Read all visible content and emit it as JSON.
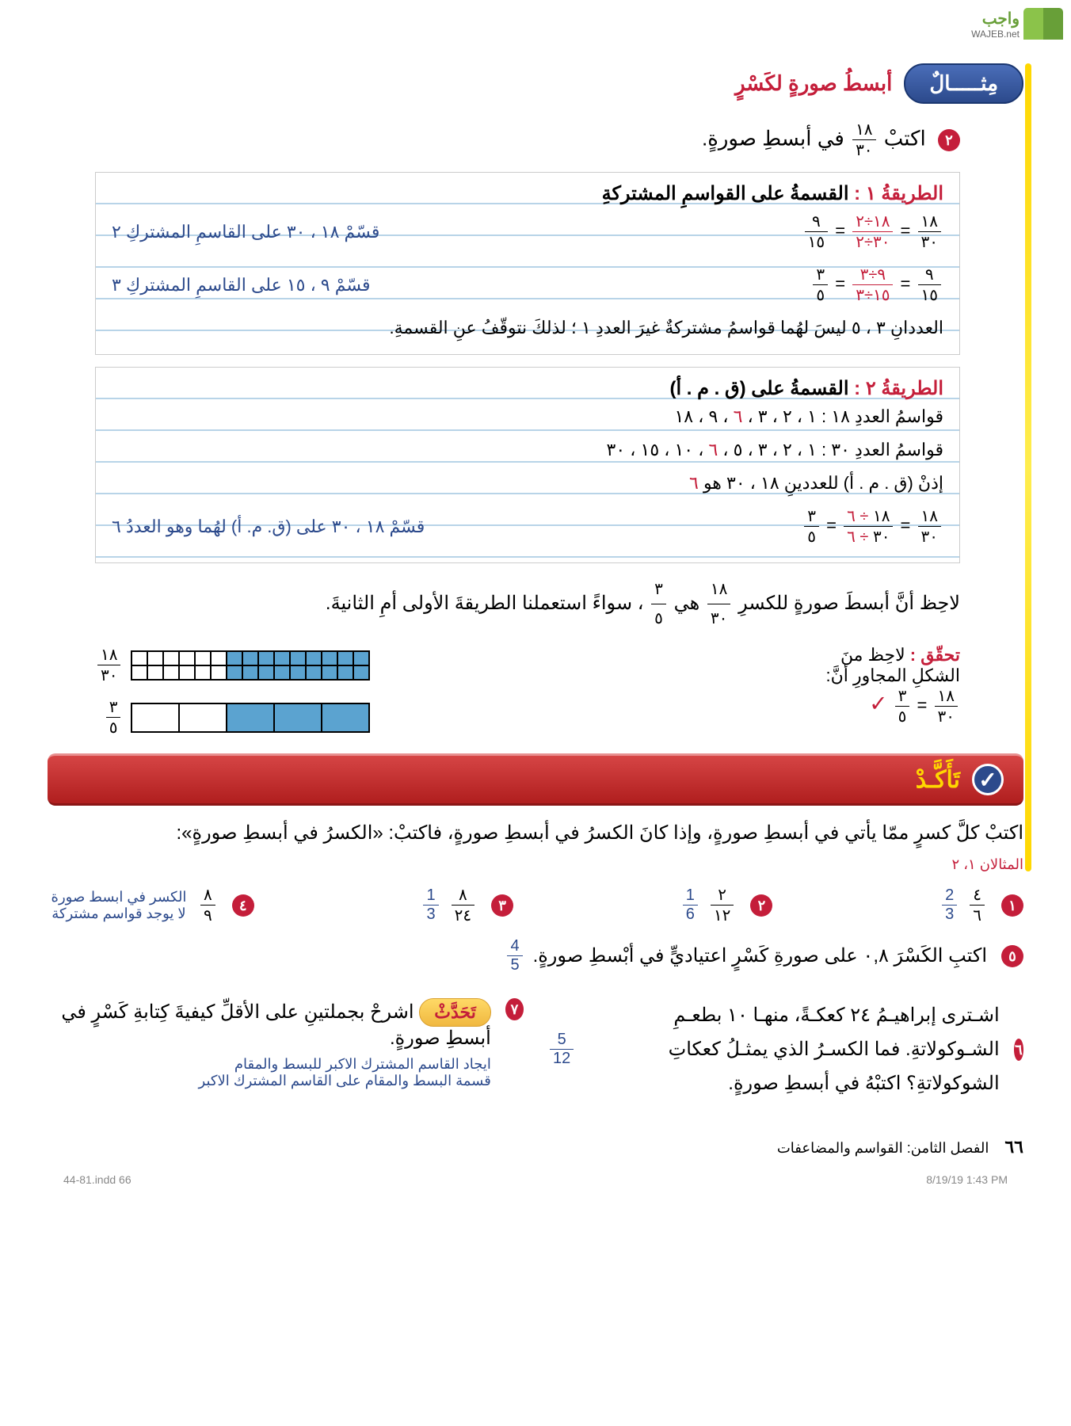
{
  "logo": {
    "text": "واجب",
    "sub": "WAJEB.net"
  },
  "example": {
    "pill": "مِثـــــالٌ",
    "subtitle": "أبسطُ صورةٍ لكَسْرٍ",
    "bullet_num": "٢",
    "problem_prefix": "اكتبْ",
    "problem_frac": {
      "num": "١٨",
      "den": "٣٠"
    },
    "problem_suffix": "في أبسطِ صورةٍ."
  },
  "method1": {
    "title_red": "الطريقةُ ١ :",
    "title_black": "القسمةُ على القواسمِ المشتركةِ",
    "line1_note": "قسّمْ ١٨ ، ٣٠ على القاسمِ المشتركِ ٢",
    "line2_note": "قسّمْ ٩ ، ١٥ على القاسمِ المشتركِ ٣",
    "conclusion": "العددانِ ٣ ، ٥ ليسَ لهُما قواسمُ مشتركةٌ غيرَ العددِ ١ ؛ لذلكَ نتوقّفُ عنِ القسمةِ."
  },
  "method2": {
    "title_red": "الطريقةُ ٢ :",
    "title_black": "القسمةُ على (ق . م . أ)",
    "line1": "قواسمُ العددِ ١٨ : ١ ، ٢ ، ٣ ،",
    "line1_red": "٦",
    "line1b": "، ٩ ، ١٨",
    "line2": "قواسمُ العددِ ٣٠ : ١ ، ٢ ، ٣ ، ٥ ،",
    "line2_red": "٦",
    "line2b": "، ١٠ ، ١٥ ، ٣٠",
    "line3": "إذنْ (ق . م . أ) للعددينِ ١٨ ، ٣٠ هو",
    "line3_red": "٦",
    "calc_note": "قسّمْ ١٨ ، ٣٠ على (ق. م. أ) لهُما وهو العددُ ٦"
  },
  "note": {
    "text1": "لاحِظ أنَّ أبسطَ صورةٍ للكسرِ",
    "f1": {
      "num": "١٨",
      "den": "٣٠"
    },
    "text2": "هي",
    "f2": {
      "num": "٣",
      "den": "٥"
    },
    "text3": "، سواءً استعملنا الطريقةَ الأولى أمِ الثانيةَ."
  },
  "check": {
    "label": "تحقّق :",
    "text1": "لاحِظ منَ",
    "text2": "الشكلِ المجاورِ أنَّ:",
    "f1": {
      "num": "١٨",
      "den": "٣٠"
    },
    "eq": "=",
    "f2": {
      "num": "٣",
      "den": "٥"
    },
    "mark": "✓"
  },
  "confirm": {
    "label": "تَأَكَّـدْ",
    "check": "✓"
  },
  "instruction": "اكتبْ كلَّ كسرٍ ممّا يأتي في أبسطِ صورةٍ، وإذا كانَ الكسرُ في أبسطِ صورةٍ، فاكتبْ: «الكسرُ في أبسطِ صورةٍ»:",
  "ref": "المثالان ١، ٢",
  "exercises": [
    {
      "n": "١",
      "q": {
        "num": "٤",
        "den": "٦"
      },
      "a": {
        "num": "2",
        "den": "3"
      }
    },
    {
      "n": "٢",
      "q": {
        "num": "٢",
        "den": "١٢"
      },
      "a": {
        "num": "1",
        "den": "6"
      }
    },
    {
      "n": "٣",
      "q": {
        "num": "٨",
        "den": "٢٤"
      },
      "a": {
        "num": "1",
        "den": "3"
      }
    },
    {
      "n": "٤",
      "q": {
        "num": "٨",
        "den": "٩"
      },
      "a_text": "الكسر في ابسط صورة   لا يوجد قواسم مشتركة"
    }
  ],
  "ex5": {
    "n": "٥",
    "text": "اكتبِ الكَسْرَ ٠,٨ على صورةِ كَسْرٍ اعتياديٍّ في أبْسطِ صورةٍ.",
    "ans": {
      "num": "4",
      "den": "5"
    }
  },
  "ex6": {
    "n": "٦",
    "text": "اشـترى إبراهيـمُ ٢٤ كعكـةً، منهـا ١٠ بطعـمِ الشـوكولاتةِ. فما الكسـرُ الذي يمثـلُ كعكاتِ الشوكولاتةِ؟ اكتبْهُ في أبسطِ صورةٍ.",
    "ans": {
      "num": "5",
      "den": "12"
    }
  },
  "ex7": {
    "n": "٧",
    "talk": "تَحَدَّثْ",
    "text": "اشرحْ بجملتينِ على الأقلِّ كيفيةَ كِتابةِ كَسْرٍ في أبسطِ صورةٍ.",
    "ans1": "ايجاد القاسم المشترك الاكبر للبسط والمقام",
    "ans2": "قسمة البسط والمقام على القاسم المشترك الاكبر"
  },
  "footer": {
    "page": "٦٦",
    "chapter": "الفصل الثامن:   القواسم والمضاعفات"
  },
  "meta": {
    "left": "44-81.indd   66",
    "right": "8/19/19   1:43 PM"
  },
  "colors": {
    "red": "#c41e3a",
    "blue": "#2c4a8c",
    "yellow": "#ffd700",
    "cell_fill": "#5ba3d0"
  }
}
